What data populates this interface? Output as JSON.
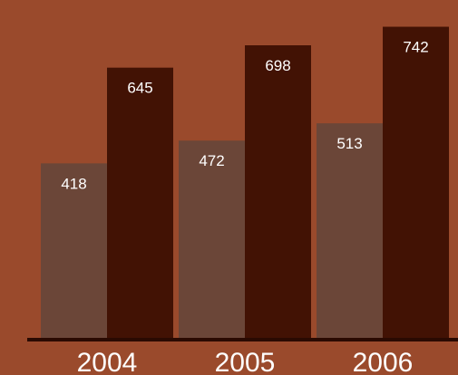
{
  "chart_data": {
    "type": "bar",
    "categories": [
      "2004",
      "2005",
      "2006"
    ],
    "series": [
      {
        "values": [
          418,
          472,
          513
        ],
        "color": "#6b4638"
      },
      {
        "values": [
          645,
          698,
          742
        ],
        "color": "#421204"
      }
    ],
    "ylim": [
      0,
      760
    ],
    "grid": false,
    "background": "#9a4a2c",
    "axis_color": "#2a0a02"
  }
}
